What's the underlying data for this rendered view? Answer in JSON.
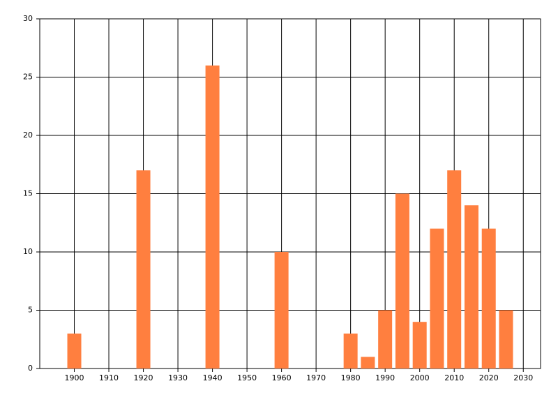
{
  "chart_data": {
    "type": "bar",
    "x": [
      1900,
      1920,
      1940,
      1960,
      1980,
      1985,
      1990,
      1995,
      2000,
      2005,
      2010,
      2015,
      2020,
      2025
    ],
    "values": [
      3,
      17,
      26,
      10,
      3,
      1,
      5,
      15,
      4,
      12,
      17,
      14,
      12,
      5
    ],
    "color": "#ff7f3f",
    "xlim": [
      1890,
      2035
    ],
    "xticks": [
      1900,
      1910,
      1920,
      1930,
      1940,
      1950,
      1960,
      1970,
      1980,
      1990,
      2000,
      2010,
      2020,
      2030
    ],
    "ylim": [
      0,
      30
    ],
    "yticks": [
      0,
      5,
      10,
      15,
      20,
      25,
      30
    ],
    "grid": true
  }
}
